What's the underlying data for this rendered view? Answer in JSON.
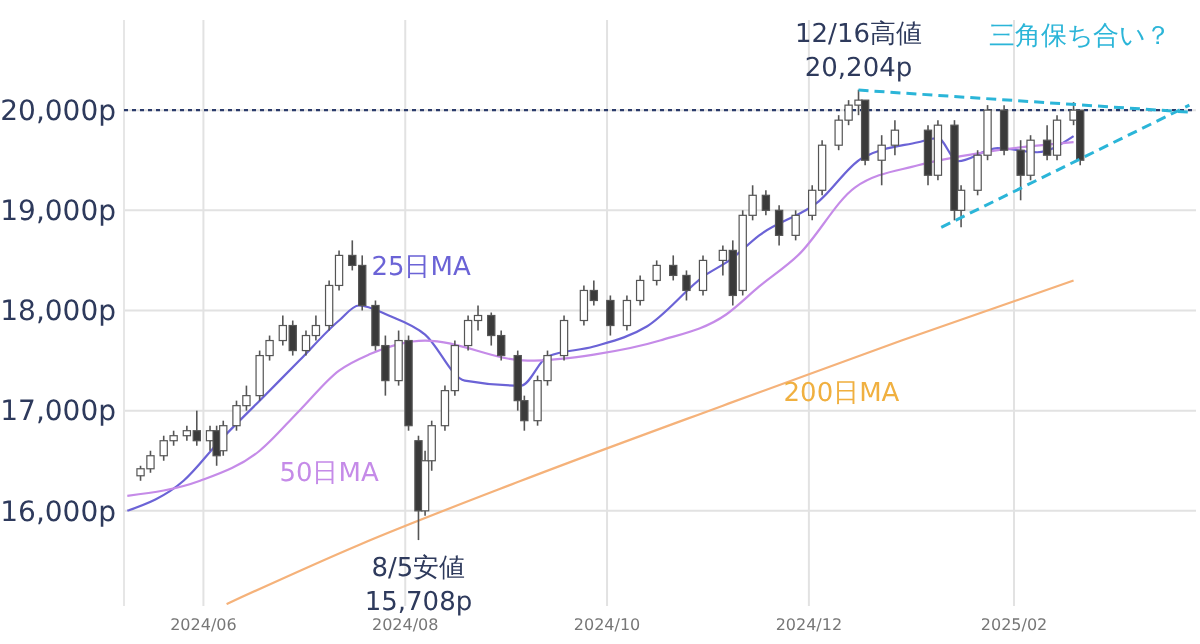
{
  "chart_data": {
    "type": "candlestick",
    "x": [
      "2024-05-13",
      "2024-05-16",
      "2024-05-20",
      "2024-05-23",
      "2024-05-27",
      "2024-05-30",
      "2024-06-03",
      "2024-06-05",
      "2024-06-07",
      "2024-06-11",
      "2024-06-14",
      "2024-06-18",
      "2024-06-21",
      "2024-06-25",
      "2024-06-28",
      "2024-07-02",
      "2024-07-05",
      "2024-07-09",
      "2024-07-12",
      "2024-07-16",
      "2024-07-19",
      "2024-07-23",
      "2024-07-26",
      "2024-07-30",
      "2024-08-02",
      "2024-08-05",
      "2024-08-07",
      "2024-08-09",
      "2024-08-13",
      "2024-08-16",
      "2024-08-20",
      "2024-08-23",
      "2024-08-27",
      "2024-08-30",
      "2024-09-04",
      "2024-09-06",
      "2024-09-10",
      "2024-09-13",
      "2024-09-18",
      "2024-09-24",
      "2024-09-27",
      "2024-10-02",
      "2024-10-07",
      "2024-10-11",
      "2024-10-16",
      "2024-10-21",
      "2024-10-25",
      "2024-10-30",
      "2024-11-05",
      "2024-11-08",
      "2024-11-11",
      "2024-11-14",
      "2024-11-18",
      "2024-11-22",
      "2024-11-27",
      "2024-12-02",
      "2024-12-05",
      "2024-12-10",
      "2024-12-13",
      "2024-12-16",
      "2024-12-18",
      "2024-12-23",
      "2024-12-27",
      "2025-01-06",
      "2025-01-09",
      "2025-01-14",
      "2025-01-16",
      "2025-01-21",
      "2025-01-24",
      "2025-01-29",
      "2025-02-03",
      "2025-02-06",
      "2025-02-11",
      "2025-02-14",
      "2025-02-19",
      "2025-02-21"
    ],
    "ohlc": [
      [
        16350,
        16450,
        16300,
        16420
      ],
      [
        16420,
        16600,
        16380,
        16550
      ],
      [
        16550,
        16750,
        16500,
        16700
      ],
      [
        16700,
        16800,
        16650,
        16750
      ],
      [
        16750,
        16850,
        16700,
        16800
      ],
      [
        16800,
        17000,
        16650,
        16700
      ],
      [
        16700,
        16850,
        16600,
        16800
      ],
      [
        16800,
        16850,
        16450,
        16550
      ],
      [
        16600,
        16900,
        16550,
        16850
      ],
      [
        16850,
        17100,
        16800,
        17050
      ],
      [
        17050,
        17250,
        17000,
        17150
      ],
      [
        17150,
        17600,
        17100,
        17550
      ],
      [
        17550,
        17750,
        17500,
        17700
      ],
      [
        17700,
        17950,
        17650,
        17850
      ],
      [
        17850,
        17900,
        17550,
        17600
      ],
      [
        17600,
        17800,
        17550,
        17750
      ],
      [
        17750,
        17950,
        17700,
        17850
      ],
      [
        17850,
        18300,
        17800,
        18250
      ],
      [
        18250,
        18600,
        18200,
        18550
      ],
      [
        18550,
        18700,
        18400,
        18450
      ],
      [
        18450,
        18550,
        18000,
        18050
      ],
      [
        18050,
        18100,
        17600,
        17650
      ],
      [
        17650,
        17750,
        17150,
        17300
      ],
      [
        17300,
        17800,
        17250,
        17700
      ],
      [
        17700,
        17750,
        16800,
        16850
      ],
      [
        16700,
        16750,
        15708,
        16000
      ],
      [
        16000,
        16600,
        15950,
        16500
      ],
      [
        16500,
        16900,
        16400,
        16850
      ],
      [
        16850,
        17250,
        16800,
        17200
      ],
      [
        17200,
        17700,
        17150,
        17650
      ],
      [
        17650,
        17950,
        17600,
        17900
      ],
      [
        17900,
        18050,
        17800,
        17950
      ],
      [
        17950,
        17980,
        17650,
        17750
      ],
      [
        17750,
        17800,
        17500,
        17550
      ],
      [
        17550,
        17600,
        17000,
        17100
      ],
      [
        17100,
        17150,
        16800,
        16900
      ],
      [
        16900,
        17350,
        16850,
        17300
      ],
      [
        17300,
        17600,
        17250,
        17550
      ],
      [
        17550,
        17950,
        17500,
        17900
      ],
      [
        17900,
        18250,
        17850,
        18200
      ],
      [
        18200,
        18300,
        18050,
        18100
      ],
      [
        18100,
        18150,
        17750,
        17850
      ],
      [
        17850,
        18150,
        17800,
        18100
      ],
      [
        18100,
        18350,
        18050,
        18300
      ],
      [
        18300,
        18500,
        18250,
        18450
      ],
      [
        18450,
        18550,
        18300,
        18350
      ],
      [
        18350,
        18400,
        18100,
        18200
      ],
      [
        18200,
        18550,
        18150,
        18500
      ],
      [
        18500,
        18650,
        18350,
        18600
      ],
      [
        18600,
        18700,
        18050,
        18150
      ],
      [
        18200,
        19000,
        18150,
        18950
      ],
      [
        18950,
        19250,
        18900,
        19150
      ],
      [
        19150,
        19200,
        18950,
        19000
      ],
      [
        19000,
        19050,
        18650,
        18750
      ],
      [
        18750,
        19000,
        18700,
        18950
      ],
      [
        18950,
        19250,
        18900,
        19200
      ],
      [
        19200,
        19700,
        19150,
        19650
      ],
      [
        19650,
        19950,
        19600,
        19900
      ],
      [
        19900,
        20100,
        19850,
        20050
      ],
      [
        20050,
        20204,
        19950,
        20100
      ],
      [
        20100,
        20100,
        19450,
        19500
      ],
      [
        19500,
        19750,
        19250,
        19650
      ],
      [
        19650,
        19900,
        19550,
        19800
      ],
      [
        19800,
        19850,
        19250,
        19350
      ],
      [
        19350,
        19900,
        19300,
        19850
      ],
      [
        19850,
        19900,
        18900,
        19000
      ],
      [
        19000,
        19250,
        18830,
        19200
      ],
      [
        19200,
        19600,
        19150,
        19550
      ],
      [
        19550,
        20050,
        19500,
        20000
      ],
      [
        20000,
        20050,
        19550,
        19600
      ],
      [
        19600,
        19700,
        19100,
        19350
      ],
      [
        19350,
        19750,
        19300,
        19700
      ],
      [
        19700,
        19850,
        19500,
        19550
      ],
      [
        19550,
        19950,
        19500,
        19900
      ],
      [
        19900,
        20080,
        19850,
        20000
      ],
      [
        20000,
        20000,
        19450,
        19500
      ]
    ],
    "series": [
      {
        "name": "25日MA",
        "type": "line",
        "color": "#6b63d6",
        "x": [
          "2024-05-09",
          "2024-05-26",
          "2024-06-06",
          "2024-06-18",
          "2024-06-30",
          "2024-07-12",
          "2024-07-18",
          "2024-07-27",
          "2024-08-07",
          "2024-08-19",
          "2024-09-05",
          "2024-09-13",
          "2024-09-27",
          "2024-10-13",
          "2024-10-31",
          "2024-11-07",
          "2024-11-16",
          "2024-12-04",
          "2024-12-17",
          "2025-01-03",
          "2025-01-09",
          "2025-01-15",
          "2025-01-27",
          "2025-02-08",
          "2025-02-19"
        ],
        "values": [
          16000,
          16300,
          16700,
          17100,
          17500,
          17900,
          18050,
          17950,
          17760,
          17300,
          17250,
          17540,
          17640,
          17840,
          18360,
          18500,
          18750,
          19090,
          19520,
          19680,
          19720,
          19490,
          19620,
          19580,
          19740
        ]
      },
      {
        "name": "50日MA",
        "type": "line",
        "color": "#c58be8",
        "x": [
          "2024-05-09",
          "2024-05-31",
          "2024-06-18",
          "2024-06-30",
          "2024-07-12",
          "2024-07-21",
          "2024-08-07",
          "2024-09-07",
          "2024-09-27",
          "2024-10-17",
          "2024-11-06",
          "2024-11-16",
          "2024-11-28",
          "2024-12-15",
          "2025-01-03",
          "2025-01-23",
          "2025-02-19"
        ],
        "values": [
          16150,
          16300,
          16600,
          17000,
          17400,
          17560,
          17700,
          17500,
          17560,
          17700,
          17960,
          18240,
          18560,
          19230,
          19450,
          19580,
          19680
        ]
      },
      {
        "name": "200日MA",
        "type": "line",
        "color": "#f5b27a",
        "x": [
          "2024-06-08",
          "2024-07-18",
          "2024-09-05",
          "2024-11-05",
          "2024-12-29",
          "2025-02-19"
        ],
        "values": [
          15070,
          15660,
          16300,
          17050,
          17700,
          18300
        ]
      },
      {
        "type": "line",
        "color": "#2bb5d8",
        "line_style": "dashed",
        "x": [
          "2024-12-16",
          "2025-03-26"
        ],
        "values": [
          20200,
          19980
        ]
      },
      {
        "type": "line",
        "color": "#2bb5d8",
        "line_style": "dashed",
        "x": [
          "2025-01-10",
          "2025-03-26"
        ],
        "values": [
          18830,
          20050
        ]
      }
    ],
    "ref_lines": [
      {
        "axis": "y",
        "value": 20000,
        "color": "#2a3a6a",
        "line_style": "dotted"
      }
    ],
    "xlim": [
      "2024-05-08",
      "2025-03-28"
    ],
    "xticks": [
      {
        "value": "2024-06-01",
        "label": "2024/06"
      },
      {
        "value": "2024-08-01",
        "label": "2024/08"
      },
      {
        "value": "2024-10-01",
        "label": "2024/10"
      },
      {
        "value": "2024-12-01",
        "label": "2024/12"
      },
      {
        "value": "2025-02-01",
        "label": "2025/02"
      }
    ],
    "ylim": [
      15050,
      20900
    ],
    "yticks": [
      {
        "value": 16000,
        "label": "16,000p"
      },
      {
        "value": 17000,
        "label": "17,000p"
      },
      {
        "value": 18000,
        "label": "18,000p"
      },
      {
        "value": 19000,
        "label": "19,000p"
      },
      {
        "value": 20000,
        "label": "20,000p"
      }
    ],
    "grid": true,
    "annotations": [
      {
        "text": "12/16高値\n20,204p",
        "x": "2024-12-16",
        "y": 20204
      },
      {
        "text": "8/5安値\n15,708p",
        "x": "2024-08-05",
        "y": 15708
      },
      "三角保ち合い？"
    ]
  }
}
